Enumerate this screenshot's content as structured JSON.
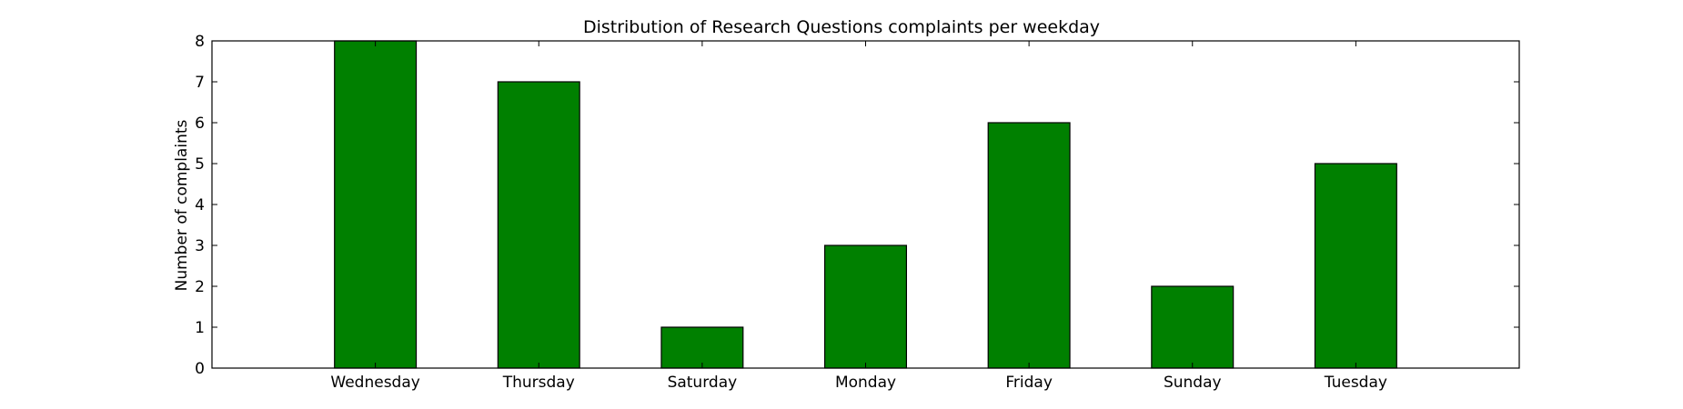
{
  "chart_data": {
    "type": "bar",
    "title": "Distribution of  Research Questions complaints per weekday",
    "xlabel": "",
    "ylabel": "Number of complaints",
    "categories": [
      "Wednesday",
      "Thursday",
      "Saturday",
      "Monday",
      "Friday",
      "Sunday",
      "Tuesday"
    ],
    "values": [
      8,
      7,
      1,
      3,
      6,
      2,
      5
    ],
    "ylim": [
      0,
      8
    ],
    "yticks": [
      0,
      1,
      2,
      3,
      4,
      5,
      6,
      7,
      8
    ],
    "bar_color": "#008000",
    "grid": false,
    "legend": "none"
  }
}
